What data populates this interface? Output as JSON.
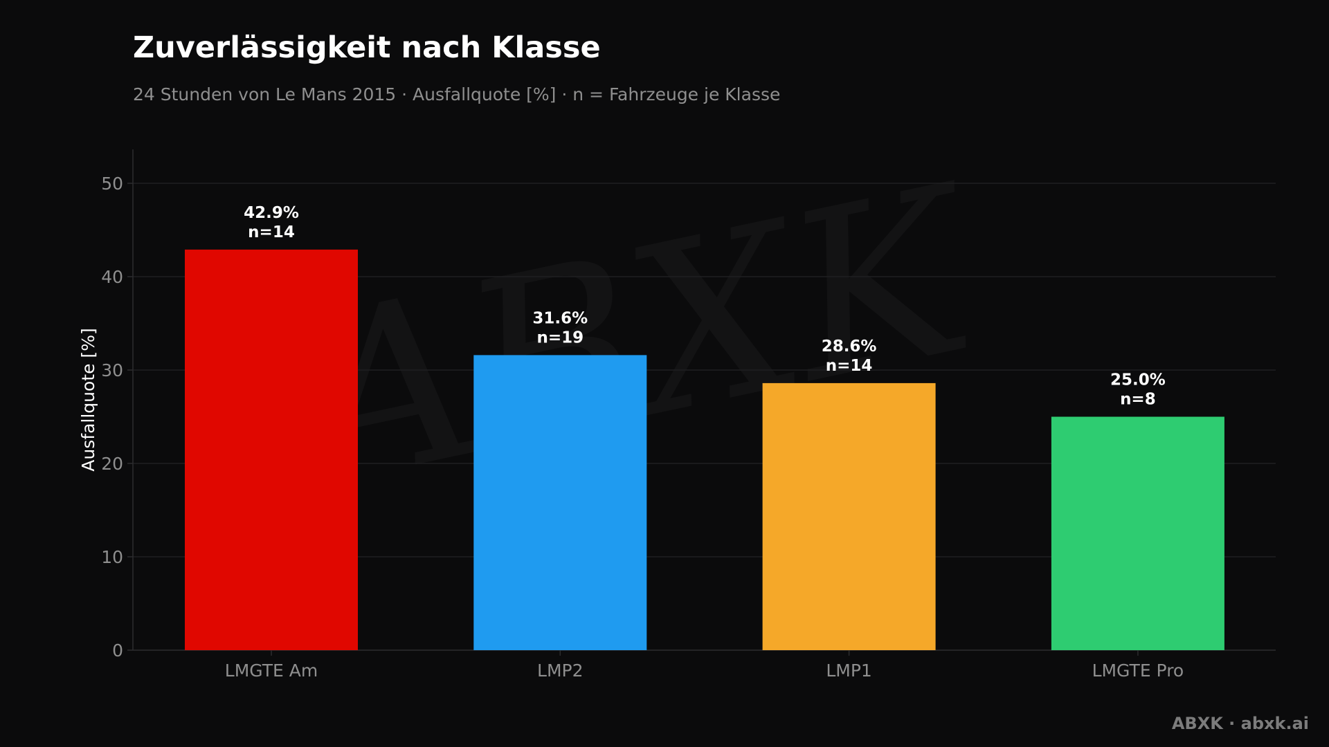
{
  "title": "Zuverlässigkeit nach Klasse",
  "subtitle": "24 Stunden von Le Mans 2015 · Ausfallquote [%] · n = Fahrzeuge je Klasse",
  "footer": "ABXK · abxk.ai",
  "watermark": "ABXK",
  "colors": {
    "background": "#0b0b0c",
    "grid": "#1f1f21",
    "axis": "#2c2c2e",
    "watermark": "#1a1a1b"
  },
  "chart_data": {
    "type": "bar",
    "ylabel": "Ausfallquote [%]",
    "xlabel": "",
    "ylim": [
      0,
      53
    ],
    "yticks": [
      0,
      10,
      20,
      30,
      40,
      50
    ],
    "grid": true,
    "categories": [
      "LMGTE Am",
      "LMP2",
      "LMP1",
      "LMGTE Pro"
    ],
    "values": [
      42.9,
      31.6,
      28.6,
      25.0
    ],
    "colors": [
      "#e00700",
      "#1f9bf0",
      "#f5a829",
      "#2ecc71"
    ],
    "labels": [
      "42.9%",
      "31.6%",
      "28.6%",
      "25.0%"
    ],
    "counts": [
      "n=14",
      "n=19",
      "n=14",
      "n=8"
    ]
  }
}
